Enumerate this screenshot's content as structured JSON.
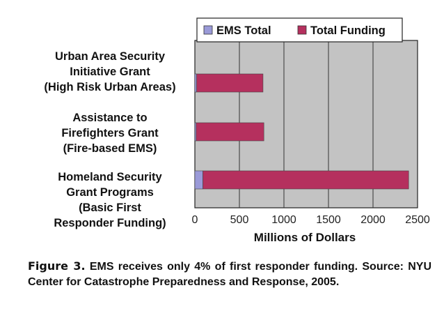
{
  "chart_data": {
    "type": "bar",
    "orientation": "horizontal",
    "stacked": true,
    "categories": [
      "Urban Area Security\nInitiative Grant\n(High Risk Urban Areas)",
      "Assistance to\nFirefighters Grant\n(Fire-based EMS)",
      "Homeland Security\nGrant Programs\n(Basic First\nResponder Funding)"
    ],
    "series": [
      {
        "name": "EMS Total",
        "color": "#9a9ad8",
        "values": [
          20,
          15,
          90
        ]
      },
      {
        "name": "Total Funding",
        "color": "#b5305e",
        "values": [
          745,
          760,
          2310
        ]
      }
    ],
    "xlabel": "Millions of Dollars",
    "xlim": [
      0,
      2500
    ],
    "xticks": [
      "0",
      "500",
      "1000",
      "1500",
      "2000",
      "2500"
    ],
    "grid": true,
    "legend_position": "top"
  },
  "caption": {
    "figure_label": "Figure 3.",
    "text": " EMS receives only 4% of first responder funding. Source: NYU Center for Catastrophe Preparedness and Response, 2005."
  }
}
